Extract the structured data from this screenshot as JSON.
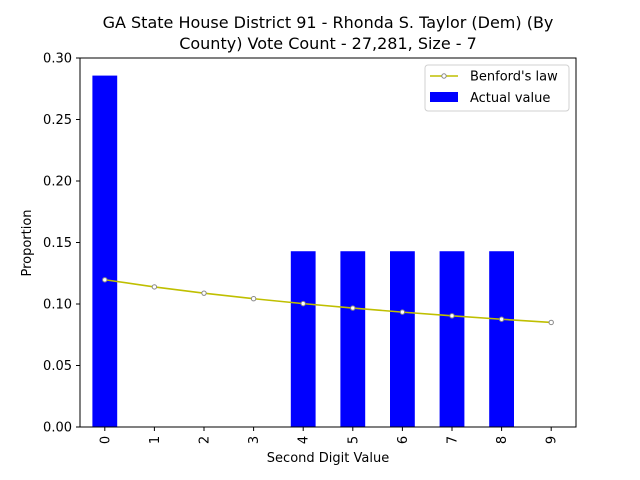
{
  "chart_data": {
    "type": "bar",
    "title_lines": [
      "GA State House District 91 - Rhonda S. Taylor (Dem) (By",
      "County) Vote Count - 27,281, Size - 7"
    ],
    "xlabel": "Second Digit Value",
    "ylabel": "Proportion",
    "categories": [
      "0",
      "1",
      "2",
      "3",
      "4",
      "5",
      "6",
      "7",
      "8",
      "9"
    ],
    "ylim": [
      0,
      0.3
    ],
    "yticks": [
      "0.00",
      "0.05",
      "0.10",
      "0.15",
      "0.20",
      "0.25",
      "0.30"
    ],
    "legend_position": "top-right",
    "series": [
      {
        "name": "Benford's law",
        "kind": "line",
        "color": "#bfbf00",
        "values": [
          0.1197,
          0.1139,
          0.1088,
          0.1043,
          0.1003,
          0.0967,
          0.0934,
          0.0904,
          0.0876,
          0.085
        ]
      },
      {
        "name": "Actual value",
        "kind": "bar",
        "color": "#0000ff",
        "values": [
          0.2857,
          0,
          0,
          0,
          0.1429,
          0.1429,
          0.1429,
          0.1429,
          0.1429,
          0
        ]
      }
    ]
  }
}
